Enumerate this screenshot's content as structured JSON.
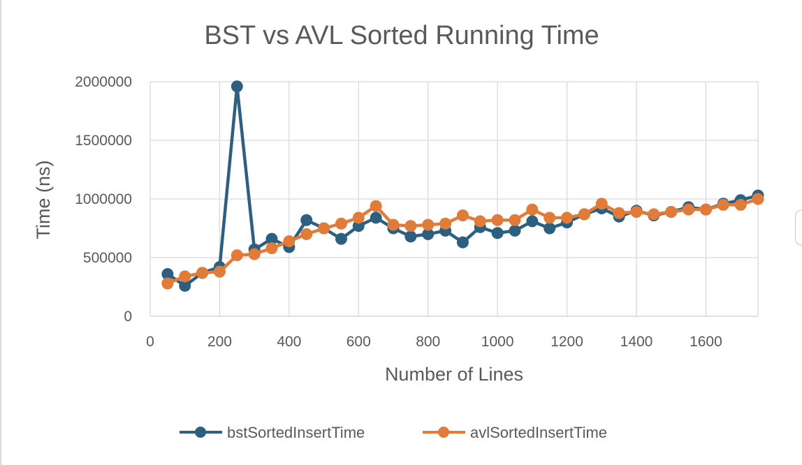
{
  "colors": {
    "bst": "#2c5f80",
    "avl": "#e07b39",
    "grid": "#d9d9d9",
    "text": "#595959"
  },
  "chart_data": {
    "type": "line",
    "title": "BST vs AVL Sorted Running Time",
    "xlabel": "Number of Lines",
    "ylabel": "Time (ns)",
    "xlim": [
      0,
      1750
    ],
    "ylim": [
      0,
      2000000
    ],
    "x_ticks": [
      0,
      200,
      400,
      600,
      800,
      1000,
      1200,
      1400,
      1600
    ],
    "y_ticks": [
      0,
      500000,
      1000000,
      1500000,
      2000000
    ],
    "grid": true,
    "legend_position": "bottom",
    "x": [
      50,
      100,
      150,
      200,
      250,
      300,
      350,
      400,
      450,
      500,
      550,
      600,
      650,
      700,
      750,
      800,
      850,
      900,
      950,
      1000,
      1050,
      1100,
      1150,
      1200,
      1250,
      1300,
      1350,
      1400,
      1450,
      1500,
      1550,
      1600,
      1650,
      1700,
      1750
    ],
    "series": [
      {
        "name": "bstSortedInsertTime",
        "color": "#2c5f80",
        "values": [
          360000,
          260000,
          370000,
          420000,
          1960000,
          570000,
          660000,
          590000,
          820000,
          750000,
          660000,
          770000,
          840000,
          750000,
          680000,
          700000,
          730000,
          630000,
          760000,
          710000,
          730000,
          810000,
          750000,
          800000,
          870000,
          920000,
          850000,
          900000,
          860000,
          890000,
          930000,
          910000,
          960000,
          990000,
          1030000
        ]
      },
      {
        "name": "avlSortedInsertTime",
        "color": "#e07b39",
        "values": [
          280000,
          340000,
          370000,
          380000,
          520000,
          530000,
          580000,
          640000,
          700000,
          750000,
          790000,
          840000,
          940000,
          780000,
          770000,
          780000,
          790000,
          860000,
          810000,
          820000,
          820000,
          910000,
          840000,
          840000,
          870000,
          960000,
          880000,
          890000,
          870000,
          890000,
          910000,
          910000,
          950000,
          950000,
          1000000
        ]
      }
    ]
  }
}
